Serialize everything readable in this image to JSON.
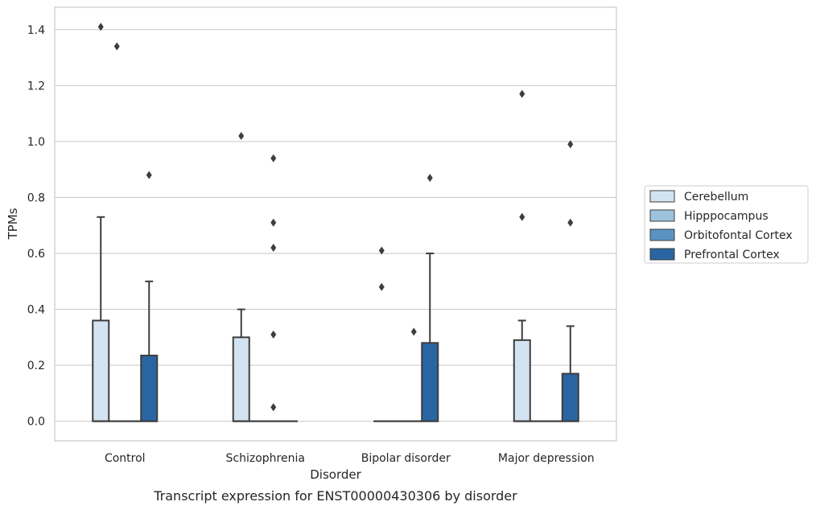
{
  "caption": "Transcript expression for ENST00000430306 by disorder",
  "chart_data": {
    "type": "box",
    "xlabel": "Disorder",
    "ylabel": "TPMs",
    "ylim": [
      -0.07,
      1.48
    ],
    "yticks": [
      "0.0",
      "0.2",
      "0.4",
      "0.6",
      "0.8",
      "1.0",
      "1.2",
      "1.4"
    ],
    "grid": true,
    "legend_position": "right",
    "categories": [
      "Control",
      "Schizophrenia",
      "Bipolar disorder",
      "Major depression"
    ],
    "series": [
      {
        "name": "Cerebellum",
        "color": "#d4e3f1",
        "boxes": [
          {
            "q1": 0.0,
            "median": 0.0,
            "q3": 0.36,
            "whisker_low": 0.0,
            "whisker_high": 0.73,
            "outliers": [
              1.41
            ]
          },
          {
            "q1": 0.0,
            "median": 0.0,
            "q3": 0.3,
            "whisker_low": 0.0,
            "whisker_high": 0.4,
            "outliers": [
              1.02
            ]
          },
          {
            "q1": 0.0,
            "median": 0.0,
            "q3": 0.0,
            "whisker_low": 0.0,
            "whisker_high": 0.0,
            "outliers": [
              0.61,
              0.48
            ]
          },
          {
            "q1": 0.0,
            "median": 0.0,
            "q3": 0.29,
            "whisker_low": 0.0,
            "whisker_high": 0.36,
            "outliers": [
              1.17,
              0.73
            ]
          }
        ]
      },
      {
        "name": "Hipppocampus",
        "color": "#9cc2dc",
        "boxes": [
          {
            "q1": 0.0,
            "median": 0.0,
            "q3": 0.0,
            "whisker_low": 0.0,
            "whisker_high": 0.0,
            "outliers": [
              1.34
            ]
          },
          {
            "q1": 0.0,
            "median": 0.0,
            "q3": 0.0,
            "whisker_low": 0.0,
            "whisker_high": 0.0,
            "outliers": []
          },
          {
            "q1": 0.0,
            "median": 0.0,
            "q3": 0.0,
            "whisker_low": 0.0,
            "whisker_high": 0.0,
            "outliers": []
          },
          {
            "q1": 0.0,
            "median": 0.0,
            "q3": 0.0,
            "whisker_low": 0.0,
            "whisker_high": 0.0,
            "outliers": []
          }
        ]
      },
      {
        "name": "Orbitofontal Cortex",
        "color": "#5a93c1",
        "boxes": [
          {
            "q1": 0.0,
            "median": 0.0,
            "q3": 0.0,
            "whisker_low": 0.0,
            "whisker_high": 0.0,
            "outliers": []
          },
          {
            "q1": 0.0,
            "median": 0.0,
            "q3": 0.0,
            "whisker_low": 0.0,
            "whisker_high": 0.0,
            "outliers": [
              0.94,
              0.71,
              0.62,
              0.31,
              0.05
            ]
          },
          {
            "q1": 0.0,
            "median": 0.0,
            "q3": 0.0,
            "whisker_low": 0.0,
            "whisker_high": 0.0,
            "outliers": [
              0.32
            ]
          },
          {
            "q1": 0.0,
            "median": 0.0,
            "q3": 0.0,
            "whisker_low": 0.0,
            "whisker_high": 0.0,
            "outliers": []
          }
        ]
      },
      {
        "name": "Prefrontal Cortex",
        "color": "#2a65a3",
        "boxes": [
          {
            "q1": 0.0,
            "median": 0.0,
            "q3": 0.235,
            "whisker_low": 0.0,
            "whisker_high": 0.5,
            "outliers": [
              0.88
            ]
          },
          {
            "q1": 0.0,
            "median": 0.0,
            "q3": 0.0,
            "whisker_low": 0.0,
            "whisker_high": 0.0,
            "outliers": []
          },
          {
            "q1": 0.0,
            "median": 0.0,
            "q3": 0.28,
            "whisker_low": 0.0,
            "whisker_high": 0.6,
            "outliers": [
              0.87
            ]
          },
          {
            "q1": 0.0,
            "median": 0.0,
            "q3": 0.17,
            "whisker_low": 0.0,
            "whisker_high": 0.34,
            "outliers": [
              0.99,
              0.71
            ]
          }
        ]
      }
    ]
  }
}
